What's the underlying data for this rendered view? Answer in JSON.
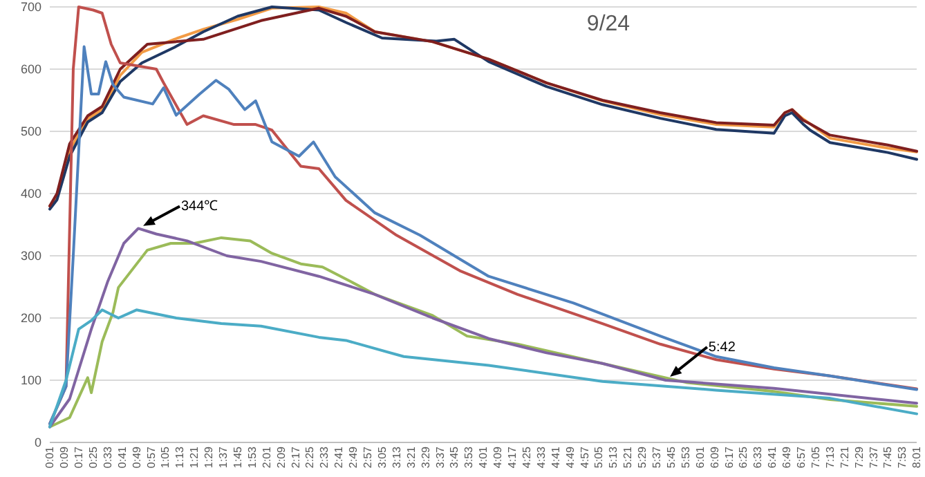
{
  "chart_data": {
    "type": "line",
    "title": "9/24",
    "xlim": [
      1,
      481
    ],
    "xticks": [
      {
        "value": 1,
        "label": "0:01"
      },
      {
        "value": 9,
        "label": "0:09"
      },
      {
        "value": 17,
        "label": "0:17"
      },
      {
        "value": 25,
        "label": "0:25"
      },
      {
        "value": 33,
        "label": "0:33"
      },
      {
        "value": 41,
        "label": "0:41"
      },
      {
        "value": 49,
        "label": "0:49"
      },
      {
        "value": 57,
        "label": "0:57"
      },
      {
        "value": 65,
        "label": "1:05"
      },
      {
        "value": 73,
        "label": "1:13"
      },
      {
        "value": 81,
        "label": "1:21"
      },
      {
        "value": 89,
        "label": "1:29"
      },
      {
        "value": 97,
        "label": "1:37"
      },
      {
        "value": 105,
        "label": "1:45"
      },
      {
        "value": 113,
        "label": "1:53"
      },
      {
        "value": 121,
        "label": "2:01"
      },
      {
        "value": 129,
        "label": "2:09"
      },
      {
        "value": 137,
        "label": "2:17"
      },
      {
        "value": 145,
        "label": "2:25"
      },
      {
        "value": 153,
        "label": "2:33"
      },
      {
        "value": 161,
        "label": "2:41"
      },
      {
        "value": 169,
        "label": "2:49"
      },
      {
        "value": 177,
        "label": "2:57"
      },
      {
        "value": 185,
        "label": "3:05"
      },
      {
        "value": 193,
        "label": "3:13"
      },
      {
        "value": 201,
        "label": "3:21"
      },
      {
        "value": 209,
        "label": "3:29"
      },
      {
        "value": 217,
        "label": "3:37"
      },
      {
        "value": 225,
        "label": "3:45"
      },
      {
        "value": 233,
        "label": "3:53"
      },
      {
        "value": 241,
        "label": "4:01"
      },
      {
        "value": 249,
        "label": "4:09"
      },
      {
        "value": 257,
        "label": "4:17"
      },
      {
        "value": 265,
        "label": "4:25"
      },
      {
        "value": 273,
        "label": "4:33"
      },
      {
        "value": 281,
        "label": "4:41"
      },
      {
        "value": 289,
        "label": "4:49"
      },
      {
        "value": 297,
        "label": "4:57"
      },
      {
        "value": 305,
        "label": "5:05"
      },
      {
        "value": 313,
        "label": "5:13"
      },
      {
        "value": 321,
        "label": "5:21"
      },
      {
        "value": 329,
        "label": "5:29"
      },
      {
        "value": 337,
        "label": "5:37"
      },
      {
        "value": 345,
        "label": "5:45"
      },
      {
        "value": 353,
        "label": "5:53"
      },
      {
        "value": 361,
        "label": "6:01"
      },
      {
        "value": 369,
        "label": "6:09"
      },
      {
        "value": 377,
        "label": "6:17"
      },
      {
        "value": 385,
        "label": "6:25"
      },
      {
        "value": 393,
        "label": "6:33"
      },
      {
        "value": 401,
        "label": "6:41"
      },
      {
        "value": 409,
        "label": "6:49"
      },
      {
        "value": 417,
        "label": "6:57"
      },
      {
        "value": 425,
        "label": "7:05"
      },
      {
        "value": 433,
        "label": "7:13"
      },
      {
        "value": 441,
        "label": "7:21"
      },
      {
        "value": 449,
        "label": "7:29"
      },
      {
        "value": 457,
        "label": "7:37"
      },
      {
        "value": 465,
        "label": "7:45"
      },
      {
        "value": 473,
        "label": "7:53"
      },
      {
        "value": 481,
        "label": "8:01"
      }
    ],
    "ylim": [
      0,
      700
    ],
    "yticks": [
      0,
      100,
      200,
      300,
      400,
      500,
      600,
      700
    ],
    "grid": "y",
    "marker": "none",
    "line_style": "solid",
    "annotations": [
      {
        "text": "344℃",
        "x": 50,
        "y": 344
      },
      {
        "text": "5:42",
        "x": 342,
        "y": 100
      }
    ],
    "series": [
      {
        "color": "#f29b45",
        "x": [
          1,
          5,
          12,
          22,
          30,
          40,
          52,
          70,
          86,
          105,
          124,
          150,
          165,
          181,
          213,
          244,
          276,
          307,
          339,
          370,
          402,
          408,
          412,
          418,
          422,
          433,
          465,
          481
        ],
        "values": [
          380,
          395,
          470,
          520,
          535,
          590,
          627,
          648,
          664,
          680,
          698,
          700,
          690,
          660,
          644,
          616,
          578,
          549,
          527,
          511,
          507,
          530,
          535,
          520,
          512,
          489,
          473,
          467
        ]
      },
      {
        "color": "#1f3864",
        "x": [
          1,
          5,
          12,
          22,
          30,
          40,
          52,
          70,
          86,
          105,
          124,
          150,
          165,
          185,
          215,
          225,
          244,
          276,
          307,
          339,
          370,
          402,
          408,
          412,
          418,
          422,
          433,
          465,
          481
        ],
        "values": [
          375,
          390,
          460,
          515,
          530,
          580,
          610,
          635,
          660,
          685,
          700,
          695,
          675,
          650,
          645,
          648,
          612,
          572,
          543,
          521,
          503,
          497,
          525,
          530,
          512,
          502,
          482,
          466,
          455
        ]
      },
      {
        "color": "#7f1f1f",
        "x": [
          1,
          5,
          12,
          22,
          30,
          40,
          55,
          86,
          118,
          150,
          165,
          181,
          213,
          244,
          276,
          307,
          339,
          370,
          402,
          408,
          412,
          418,
          422,
          433,
          465,
          481
        ],
        "values": [
          380,
          400,
          480,
          525,
          540,
          600,
          640,
          648,
          678,
          698,
          685,
          660,
          644,
          616,
          578,
          550,
          530,
          514,
          510,
          530,
          535,
          518,
          512,
          494,
          478,
          468
        ]
      },
      {
        "color": "#c0504d",
        "x": [
          1,
          10,
          14,
          17,
          25,
          30,
          35,
          40,
          50,
          60,
          64,
          77,
          86,
          103,
          115,
          124,
          140,
          150,
          165,
          193,
          228,
          260,
          307,
          339,
          370,
          402,
          433,
          481
        ],
        "values": [
          30,
          90,
          600,
          700,
          695,
          690,
          640,
          610,
          605,
          600,
          578,
          511,
          525,
          511,
          511,
          502,
          444,
          440,
          389,
          333,
          276,
          238,
          191,
          158,
          133,
          118,
          107,
          86
        ]
      },
      {
        "color": "#4f81bd",
        "x": [
          1,
          10,
          14,
          20,
          24,
          28,
          32,
          36,
          42,
          58,
          64,
          71,
          84,
          93,
          100,
          109,
          115,
          124,
          139,
          147,
          159,
          181,
          206,
          244,
          291,
          339,
          370,
          402,
          433,
          481
        ],
        "values": [
          30,
          90,
          300,
          636,
          560,
          560,
          612,
          575,
          555,
          544,
          570,
          526,
          560,
          582,
          568,
          535,
          549,
          483,
          460,
          483,
          427,
          369,
          333,
          267,
          224,
          171,
          138,
          120,
          107,
          85
        ]
      },
      {
        "color": "#9bbb59",
        "x": [
          1,
          12,
          22,
          24,
          30,
          36,
          39,
          55,
          68,
          81,
          96,
          112,
          124,
          140,
          152,
          168,
          181,
          213,
          232,
          260,
          307,
          354,
          402,
          433,
          481
        ],
        "values": [
          25,
          40,
          104,
          80,
          162,
          209,
          249,
          309,
          320,
          320,
          329,
          324,
          304,
          287,
          282,
          258,
          238,
          204,
          171,
          158,
          127,
          96,
          82,
          69,
          58
        ]
      },
      {
        "color": "#8064a2",
        "x": [
          1,
          12,
          24,
          33,
          42,
          50,
          60,
          77,
          99,
          118,
          150,
          181,
          213,
          244,
          276,
          307,
          342,
          402,
          481
        ],
        "values": [
          25,
          70,
          182,
          258,
          320,
          344,
          335,
          324,
          300,
          291,
          267,
          238,
          200,
          167,
          144,
          127,
          100,
          87,
          63
        ]
      },
      {
        "color": "#4bacc6",
        "x": [
          1,
          10,
          17,
          24,
          30,
          39,
          49,
          71,
          96,
          118,
          150,
          165,
          197,
          244,
          307,
          370,
          433,
          481
        ],
        "values": [
          25,
          100,
          182,
          196,
          213,
          200,
          213,
          200,
          191,
          187,
          169,
          164,
          138,
          124,
          98,
          84,
          71,
          46
        ]
      }
    ]
  }
}
